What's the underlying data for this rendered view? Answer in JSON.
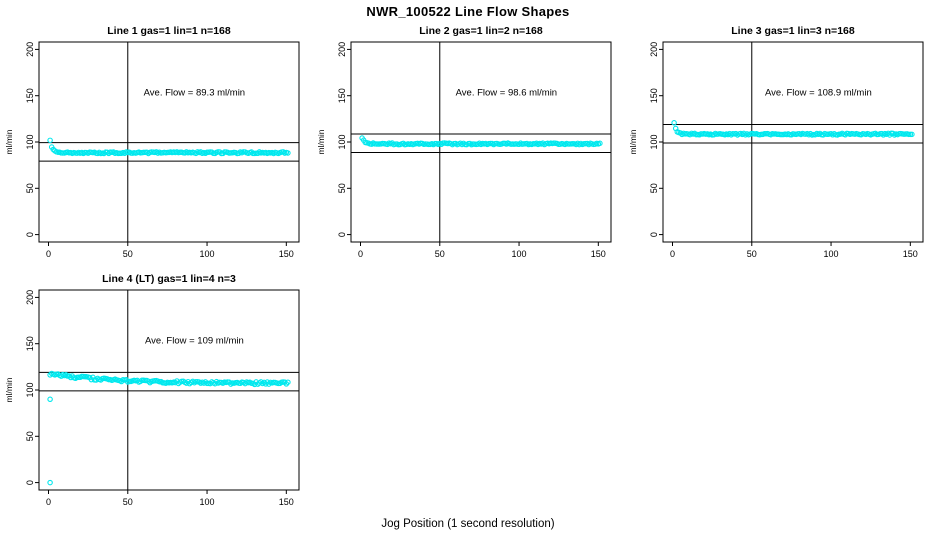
{
  "title": "NWR_100522  Line Flow Shapes",
  "xlabel": "Jog Position (1 second resolution)",
  "point_color": "#00e8ee",
  "axis_color": "#000000",
  "chart_data": [
    {
      "type": "scatter",
      "title": "Line 1 gas=1 lin=1 n=168",
      "annotation": "Ave. Flow =  89.3  ml/min",
      "ave_flow": 89.3,
      "ylabel": "ml/min",
      "xticks": [
        0,
        50,
        100,
        150
      ],
      "yticks": [
        0,
        50,
        100,
        150,
        200
      ],
      "xlim": [
        -6,
        158
      ],
      "ylim": [
        -8,
        208
      ],
      "vline": 50,
      "hlines": [
        99.3,
        79.3
      ],
      "profile": {
        "x_start": 1,
        "n": 151,
        "dx": 1,
        "start": 101,
        "settle": 88.5,
        "tau": 1.3,
        "noise": 0.9,
        "seed": 1
      },
      "extra_points": [],
      "annotation_pos": {
        "x": 92,
        "y": 150
      }
    },
    {
      "type": "scatter",
      "title": "Line 2 gas=1 lin=2 n=168",
      "annotation": "Ave. Flow =  98.6  ml/min",
      "ave_flow": 98.6,
      "ylabel": "ml/min",
      "xticks": [
        0,
        50,
        100,
        150
      ],
      "yticks": [
        0,
        50,
        100,
        150,
        200
      ],
      "xlim": [
        -6,
        158
      ],
      "ylim": [
        -8,
        208
      ],
      "vline": 50,
      "hlines": [
        108.6,
        88.6
      ],
      "profile": {
        "x_start": 1,
        "n": 151,
        "dx": 1,
        "start": 104,
        "settle": 98,
        "tau": 1.5,
        "noise": 0.9,
        "seed": 2
      },
      "extra_points": [],
      "annotation_pos": {
        "x": 92,
        "y": 150
      }
    },
    {
      "type": "scatter",
      "title": "Line 3 gas=1 lin=3 n=168",
      "annotation": "Ave. Flow =  108.9  ml/min",
      "ave_flow": 108.9,
      "ylabel": "ml/min",
      "xticks": [
        0,
        50,
        100,
        150
      ],
      "yticks": [
        0,
        50,
        100,
        150,
        200
      ],
      "xlim": [
        -6,
        158
      ],
      "ylim": [
        -8,
        208
      ],
      "vline": 50,
      "hlines": [
        118.9,
        98.9
      ],
      "profile": {
        "x_start": 1,
        "n": 151,
        "dx": 1,
        "start": 121,
        "settle": 108.5,
        "tau": 1.5,
        "noise": 0.9,
        "seed": 3
      },
      "extra_points": [],
      "annotation_pos": {
        "x": 92,
        "y": 150
      }
    },
    {
      "type": "scatter",
      "title": "Line 4 (LT) gas=1 lin=4 n=3",
      "annotation": "Ave. Flow =  109  ml/min",
      "ave_flow": 109,
      "ylabel": "ml/min",
      "xticks": [
        0,
        50,
        100,
        150
      ],
      "yticks": [
        0,
        50,
        100,
        150,
        200
      ],
      "xlim": [
        -6,
        158
      ],
      "ylim": [
        -8,
        208
      ],
      "vline": 50,
      "hlines": [
        119,
        99
      ],
      "profile": {
        "x_start": 1,
        "n": 151,
        "dx": 1,
        "start": 117.5,
        "settle": 107,
        "tau": 40,
        "noise": 1.4,
        "seed": 4
      },
      "extra_points": [
        [
          1,
          90
        ],
        [
          1,
          0
        ]
      ],
      "annotation_pos": {
        "x": 92,
        "y": 150
      }
    }
  ]
}
